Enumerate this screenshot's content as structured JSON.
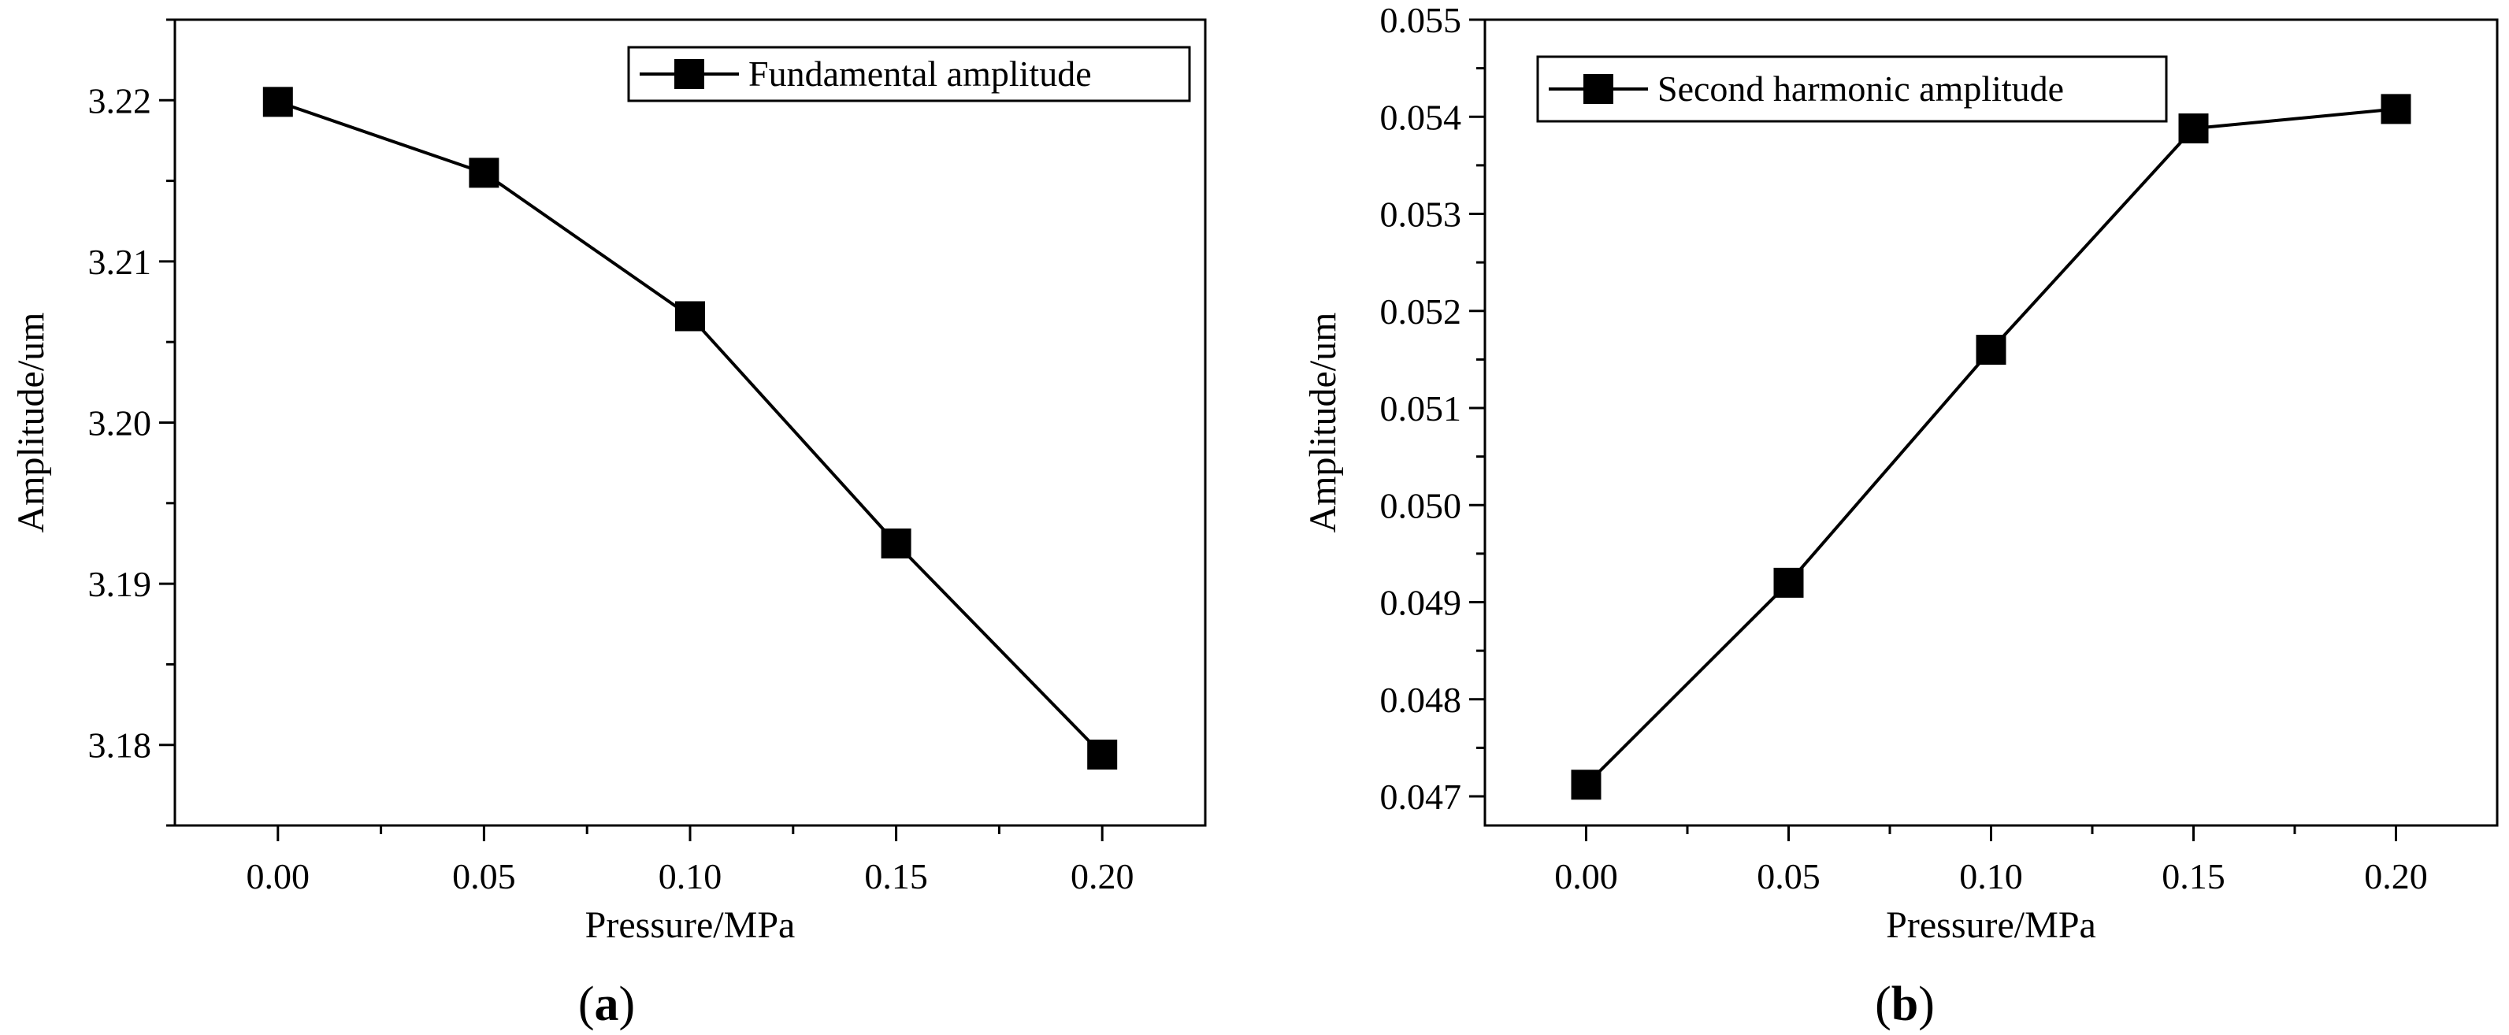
{
  "chart_data": [
    {
      "type": "line",
      "panel_label": "(a)",
      "panel_letter": "a",
      "xlabel": "Pressure/MPa",
      "ylabel": "Amplitude/um",
      "x": [
        0.0,
        0.05,
        0.1,
        0.15,
        0.2
      ],
      "xticks": [
        "0.00",
        "0.05",
        "0.10",
        "0.15",
        "0.20"
      ],
      "xlim": [
        -0.025,
        0.225
      ],
      "yticks": [
        "3.18",
        "3.19",
        "3.20",
        "3.21",
        "3.22"
      ],
      "ytick_values": [
        3.18,
        3.19,
        3.2,
        3.21,
        3.22
      ],
      "ylim": [
        3.175,
        3.225
      ],
      "legend_position": "top-right",
      "series": [
        {
          "name": "Fundamental amplitude",
          "marker": "square",
          "color": "#000000",
          "values": [
            3.2199,
            3.2155,
            3.2066,
            3.1925,
            3.1794
          ]
        }
      ]
    },
    {
      "type": "line",
      "panel_label": "(b)",
      "panel_letter": "b",
      "xlabel": "Pressure/MPa",
      "ylabel": "Amplitude/um",
      "x": [
        0.0,
        0.05,
        0.1,
        0.15,
        0.2
      ],
      "xticks": [
        "0.00",
        "0.05",
        "0.10",
        "0.15",
        "0.20"
      ],
      "xlim": [
        -0.025,
        0.225
      ],
      "yticks": [
        "0.047",
        "0.048",
        "0.049",
        "0.050",
        "0.051",
        "0.052",
        "0.053",
        "0.054",
        "0.055"
      ],
      "ytick_values": [
        0.047,
        0.048,
        0.049,
        0.05,
        0.051,
        0.052,
        0.053,
        0.054,
        0.055
      ],
      "ylim": [
        0.0467,
        0.055
      ],
      "legend_position": "top-left",
      "series": [
        {
          "name": "Second harmonic amplitude",
          "marker": "square",
          "color": "#000000",
          "values": [
            0.04712,
            0.0492,
            0.0516,
            0.05388,
            0.05408
          ]
        }
      ]
    }
  ]
}
